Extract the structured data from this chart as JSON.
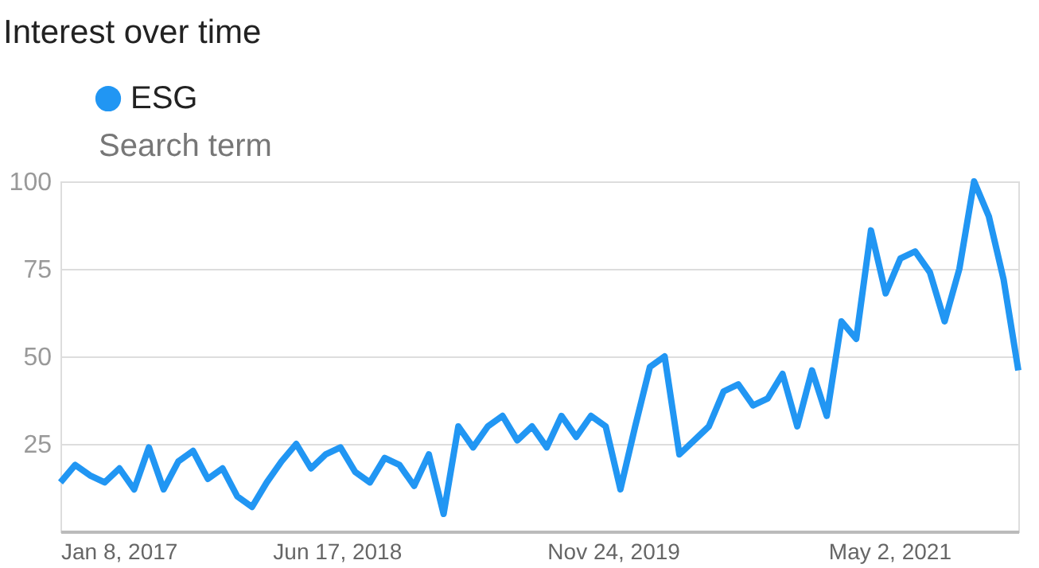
{
  "chart_data": {
    "type": "line",
    "title": "Interest over time",
    "annotations": [
      "Search term"
    ],
    "x": [
      "2017-01-08",
      "2017-02-05",
      "2017-03-05",
      "2017-04-02",
      "2017-04-30",
      "2017-05-28",
      "2017-06-25",
      "2017-07-23",
      "2017-08-20",
      "2017-09-17",
      "2017-10-15",
      "2017-11-12",
      "2017-12-10",
      "2018-01-07",
      "2018-02-04",
      "2018-03-04",
      "2018-04-01",
      "2018-04-29",
      "2018-05-27",
      "2018-06-24",
      "2018-07-22",
      "2018-08-19",
      "2018-09-16",
      "2018-10-14",
      "2018-11-11",
      "2018-12-09",
      "2019-01-06",
      "2019-02-03",
      "2019-03-03",
      "2019-03-31",
      "2019-04-28",
      "2019-05-26",
      "2019-06-23",
      "2019-07-21",
      "2019-08-18",
      "2019-09-15",
      "2019-10-13",
      "2019-11-10",
      "2019-12-08",
      "2020-01-05",
      "2020-02-02",
      "2020-03-01",
      "2020-03-29",
      "2020-04-26",
      "2020-05-24",
      "2020-06-21",
      "2020-07-19",
      "2020-08-16",
      "2020-09-13",
      "2020-10-11",
      "2020-11-08",
      "2020-12-06",
      "2021-01-03",
      "2021-01-31",
      "2021-02-28",
      "2021-03-28",
      "2021-04-25",
      "2021-05-23",
      "2021-06-20",
      "2021-07-18",
      "2021-08-15",
      "2021-09-12",
      "2021-10-10",
      "2021-11-07",
      "2021-12-05",
      "2022-01-02"
    ],
    "series": [
      {
        "name": "ESG",
        "color": "#2196f3",
        "values": [
          14,
          19,
          16,
          14,
          18,
          12,
          24,
          12,
          20,
          23,
          15,
          18,
          10,
          7,
          14,
          20,
          25,
          18,
          22,
          24,
          17,
          14,
          21,
          19,
          13,
          22,
          5,
          30,
          24,
          30,
          33,
          26,
          30,
          24,
          33,
          27,
          33,
          30,
          12,
          30,
          47,
          50,
          22,
          26,
          30,
          40,
          42,
          36,
          38,
          45,
          30,
          46,
          33,
          60,
          55,
          86,
          68,
          78,
          80,
          74,
          60,
          75,
          100,
          90,
          72,
          46
        ]
      }
    ],
    "xlim": [
      "2017-01-08",
      "2022-01-02"
    ],
    "xticks": [
      {
        "value": "2017-01-08",
        "label": "Jan 8, 2017"
      },
      {
        "value": "2018-06-17",
        "label": "Jun 17, 2018"
      },
      {
        "value": "2019-11-24",
        "label": "Nov 24, 2019"
      },
      {
        "value": "2021-05-02",
        "label": "May 2, 2021"
      }
    ],
    "ylim": [
      0,
      100
    ],
    "yticks": [
      25,
      50,
      75,
      100
    ],
    "grid": "y",
    "legend": "top left",
    "marker": "none",
    "line_style": "solid"
  }
}
